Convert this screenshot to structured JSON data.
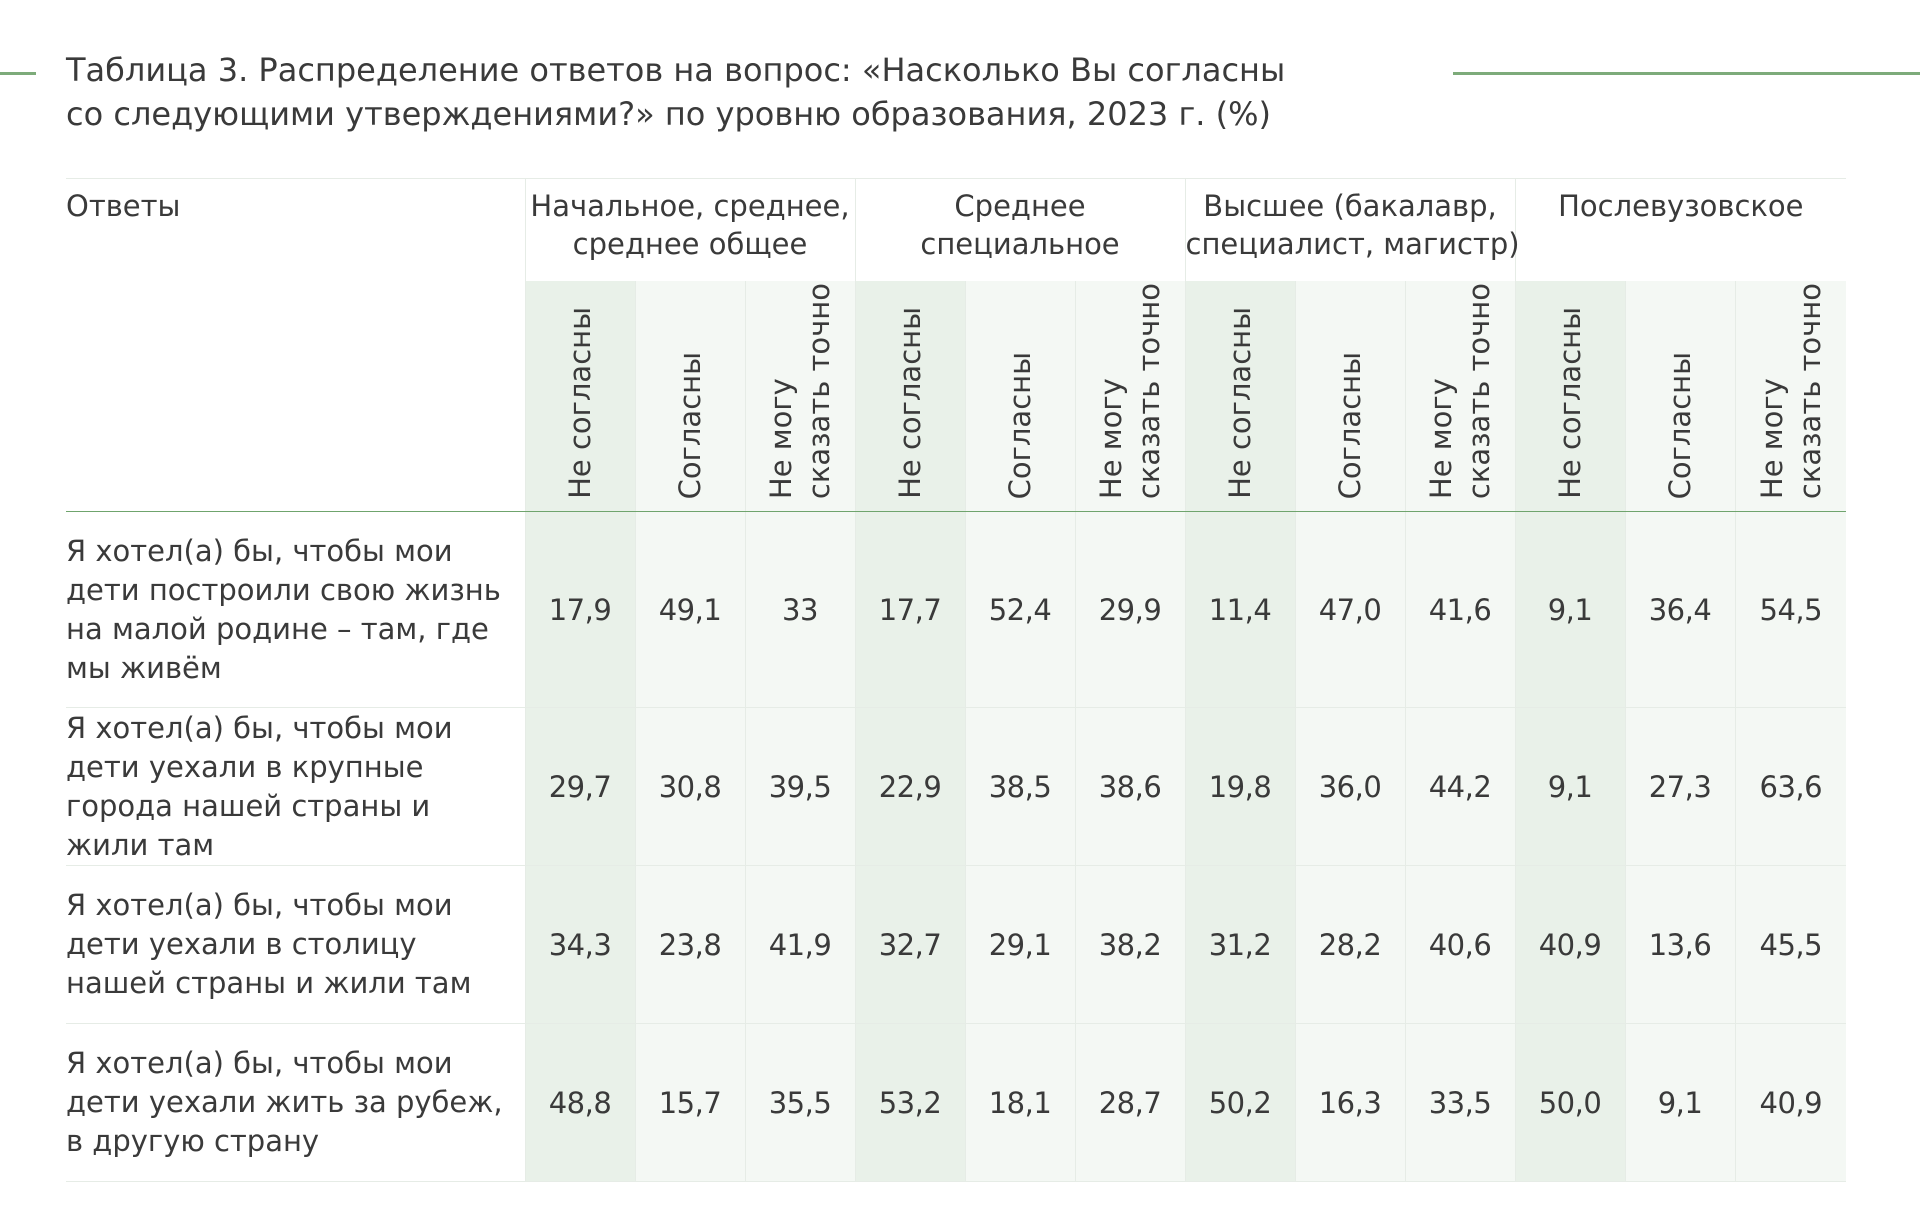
{
  "title": {
    "line1": "Таблица 3. Распределение ответов на вопрос: «Насколько Вы согласны",
    "line2": "со следующими утверждениями?» по уровню образования, 2023 г. (%)"
  },
  "table": {
    "answers_header": "Ответы",
    "groups": [
      {
        "line1": "Начальное, среднее,",
        "line2": "среднее общее"
      },
      {
        "line1": "Среднее",
        "line2": "специальное"
      },
      {
        "line1": "Высшее (бакалавр,",
        "line2": "специалист, магистр)"
      },
      {
        "line1": "Послевузовское",
        "line2": ""
      }
    ],
    "subcolumns": {
      "disagree": "Не согласны",
      "agree": "Согласны",
      "unsure_line1": "Не могу",
      "unsure_line2": "сказать точно"
    },
    "rows": [
      {
        "label": "Я хотел(а) бы, чтобы мои дети построили свою жизнь на малой родине – там, где мы живём",
        "values": [
          "17,9",
          "49,1",
          "33",
          "17,7",
          "52,4",
          "29,9",
          "11,4",
          "47,0",
          "41,6",
          "9,1",
          "36,4",
          "54,5"
        ]
      },
      {
        "label": "Я хотел(а) бы, чтобы мои дети уехали в крупные города нашей страны и жили там",
        "values": [
          "29,7",
          "30,8",
          "39,5",
          "22,9",
          "38,5",
          "38,6",
          "19,8",
          "36,0",
          "44,2",
          "9,1",
          "27,3",
          "63,6"
        ]
      },
      {
        "label": "Я хотел(а) бы, чтобы мои дети уехали в столицу нашей страны и жили там",
        "values": [
          "34,3",
          "23,8",
          "41,9",
          "32,7",
          "29,1",
          "38,2",
          "31,2",
          "28,2",
          "40,6",
          "40,9",
          "13,6",
          "45,5"
        ]
      },
      {
        "label": "Я хотел(а) бы, чтобы мои дети уехали жить за рубеж, в другую страну",
        "values": [
          "48,8",
          "15,7",
          "35,5",
          "53,2",
          "18,1",
          "28,7",
          "50,2",
          "16,3",
          "33,5",
          "50,0",
          "9,1",
          "40,9"
        ]
      }
    ]
  },
  "colors": {
    "accent_line": "#7dab7a",
    "shade_dark": "#e9f1e9",
    "shade_light": "#f4f8f4"
  }
}
